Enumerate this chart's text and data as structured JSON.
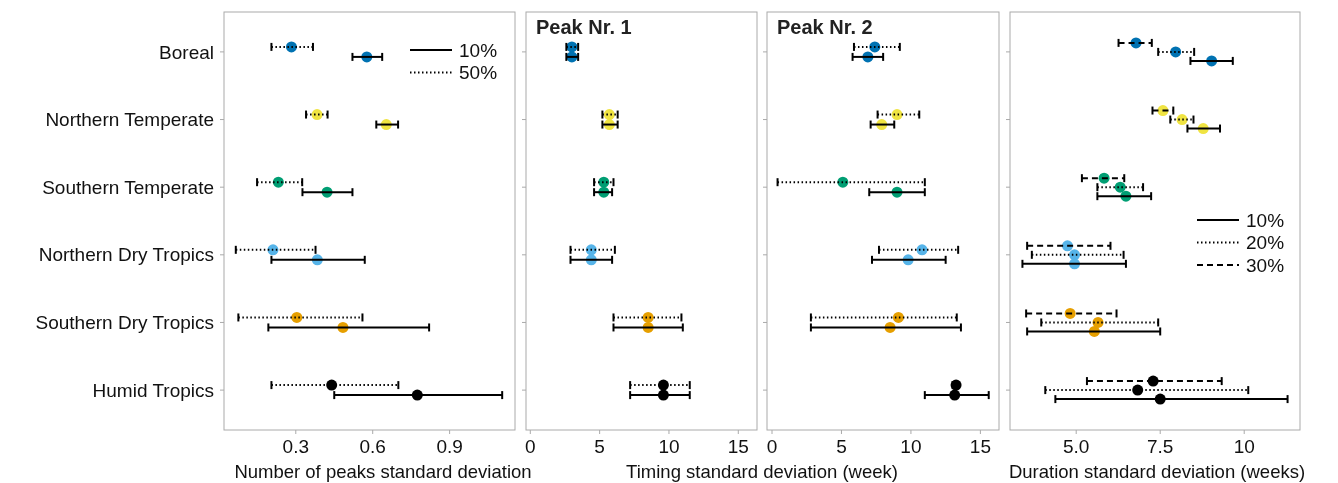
{
  "chart_data": [
    {
      "type": "scatter",
      "orientation": "horizontal",
      "marker": "circle",
      "xlabel": "Number of peaks standard deviation",
      "legend": "top right",
      "categories": [
        "Boreal",
        "Northern Temperate",
        "Southern Temperate",
        "Northern Dry Tropics",
        "Southern Dry Tropics",
        "Humid Tropics"
      ],
      "xlim": [
        0.02,
        1.155
      ],
      "xticks": [
        0.3,
        0.6,
        0.9
      ],
      "series": [
        {
          "name": "50%",
          "line_style": "dotted",
          "color": "#000000",
          "colors": [
            "#0072b2",
            "#f0e442",
            "#009e73",
            "#56b4e9",
            "#e69f00",
            "#000000"
          ],
          "values": [
            0.283,
            0.383,
            0.232,
            0.211,
            0.304,
            0.44
          ],
          "errors": [
            [
              0.205,
              0.367
            ],
            [
              0.34,
              0.424
            ],
            [
              0.149,
              0.325
            ],
            [
              0.066,
              0.377
            ],
            [
              0.076,
              0.56
            ],
            [
              0.205,
              0.7
            ]
          ]
        },
        {
          "name": "10%",
          "line_style": "solid",
          "color": "#000000",
          "colors": [
            "#0072b2",
            "#f0e442",
            "#009e73",
            "#56b4e9",
            "#e69f00",
            "#000000"
          ],
          "values": [
            0.577,
            0.653,
            0.422,
            0.384,
            0.484,
            0.774
          ],
          "errors": [
            [
              0.521,
              0.637
            ],
            [
              0.614,
              0.699
            ],
            [
              0.326,
              0.521
            ],
            [
              0.205,
              0.569
            ],
            [
              0.193,
              0.82
            ],
            [
              0.45,
              1.105
            ]
          ]
        }
      ]
    },
    {
      "type": "scatter",
      "orientation": "horizontal",
      "marker": "circle",
      "title": "Peak Nr. 1",
      "xlabel": "Timing standard deviation (week)",
      "tick_labels": "x",
      "categories": [
        null,
        null,
        null,
        null,
        null,
        null
      ],
      "xlim": [
        -0.31,
        16.35
      ],
      "xticks": [
        0,
        5,
        10,
        15
      ],
      "series": [
        {
          "line_style": "dotted",
          "color": "#000000",
          "colors": [
            "#0072b2",
            "#f0e442",
            "#009e73",
            "#56b4e9",
            "#e69f00",
            "#000000"
          ],
          "values": [
            3.0,
            5.7,
            5.3,
            4.4,
            8.5,
            9.6
          ],
          "errors": [
            [
              2.6,
              3.45
            ],
            [
              5.2,
              6.3
            ],
            [
              4.6,
              6.0
            ],
            [
              2.9,
              6.1
            ],
            [
              6.0,
              10.9
            ],
            [
              7.2,
              11.5
            ]
          ]
        },
        {
          "line_style": "solid",
          "color": "#000000",
          "colors": [
            "#0072b2",
            "#f0e442",
            "#009e73",
            "#56b4e9",
            "#e69f00",
            "#000000"
          ],
          "values": [
            3.0,
            5.7,
            5.3,
            4.4,
            8.5,
            9.6
          ],
          "errors": [
            [
              2.6,
              3.45
            ],
            [
              5.2,
              6.3
            ],
            [
              4.6,
              5.9
            ],
            [
              2.9,
              5.9
            ],
            [
              6.0,
              11.0
            ],
            [
              7.2,
              11.5
            ]
          ]
        }
      ]
    },
    {
      "type": "scatter",
      "orientation": "horizontal",
      "marker": "circle",
      "title": "Peak Nr. 2",
      "tick_labels": "x",
      "categories": [
        null,
        null,
        null,
        null,
        null,
        null
      ],
      "xlim": [
        -0.36,
        16.34
      ],
      "xticks": [
        0,
        5,
        10,
        15
      ],
      "series": [
        {
          "line_style": "dotted",
          "color": "#000000",
          "colors": [
            "#0072b2",
            "#f0e442",
            "#009e73",
            "#56b4e9",
            "#e69f00",
            "#000000"
          ],
          "values": [
            7.4,
            9.0,
            5.1,
            10.8,
            9.1,
            13.25
          ],
          "errors": [
            [
              5.9,
              9.2
            ],
            [
              7.6,
              10.6
            ],
            [
              0.4,
              11.0
            ],
            [
              7.7,
              13.4
            ],
            [
              2.8,
              13.3
            ],
            [
              13.0,
              13.4
            ]
          ]
        },
        {
          "line_style": "solid",
          "color": "#000000",
          "colors": [
            "#0072b2",
            "#f0e442",
            "#009e73",
            "#56b4e9",
            "#e69f00",
            "#000000"
          ],
          "values": [
            6.9,
            7.9,
            9.0,
            9.8,
            8.5,
            13.15
          ],
          "errors": [
            [
              5.8,
              8.0
            ],
            [
              7.1,
              8.8
            ],
            [
              7.0,
              11.0
            ],
            [
              7.2,
              12.5
            ],
            [
              2.8,
              13.6
            ],
            [
              11.0,
              15.6
            ]
          ]
        }
      ]
    },
    {
      "type": "scatter",
      "orientation": "horizontal",
      "marker": "circle",
      "xlabel": "Duration standard deviation (weeks)",
      "legend": "right",
      "tick_labels": "x",
      "categories": [
        null,
        null,
        null,
        null,
        null,
        null
      ],
      "xlim": [
        3.03,
        11.66
      ],
      "xticks": [
        {
          "value": 5,
          "label": "5.0"
        },
        7.5,
        10
      ],
      "series": [
        {
          "name": "30%",
          "line_style": "dashed",
          "color": "#000000",
          "colors": [
            "#0072b2",
            "#f0e442",
            "#009e73",
            "#56b4e9",
            "#e69f00",
            "#000000"
          ],
          "values": [
            6.78,
            7.58,
            5.83,
            4.74,
            4.82,
            7.29
          ],
          "errors": [
            [
              6.26,
              7.25
            ],
            [
              7.27,
              7.89
            ],
            [
              5.17,
              6.43
            ],
            [
              3.54,
              6.02
            ],
            [
              3.51,
              6.2
            ],
            [
              5.32,
              9.33
            ]
          ]
        },
        {
          "name": "20%",
          "line_style": "dotted",
          "color": "#000000",
          "colors": [
            "#0072b2",
            "#f0e442",
            "#009e73",
            "#56b4e9",
            "#e69f00",
            "#000000"
          ],
          "values": [
            7.96,
            8.15,
            6.31,
            4.95,
            5.65,
            6.83
          ],
          "errors": [
            [
              7.44,
              8.51
            ],
            [
              7.8,
              8.49
            ],
            [
              5.63,
              6.99
            ],
            [
              3.68,
              6.41
            ],
            [
              3.96,
              7.44
            ],
            [
              4.08,
              10.12
            ]
          ]
        },
        {
          "name": "10%",
          "line_style": "solid",
          "color": "#000000",
          "colors": [
            "#0072b2",
            "#f0e442",
            "#009e73",
            "#56b4e9",
            "#e69f00",
            "#000000"
          ],
          "values": [
            9.03,
            8.78,
            6.48,
            4.95,
            5.54,
            7.5
          ],
          "errors": [
            [
              8.4,
              9.66
            ],
            [
              8.31,
              9.28
            ],
            [
              5.63,
              7.23
            ],
            [
              3.4,
              6.48
            ],
            [
              3.54,
              7.5
            ],
            [
              4.38,
              11.29
            ]
          ]
        }
      ]
    }
  ]
}
